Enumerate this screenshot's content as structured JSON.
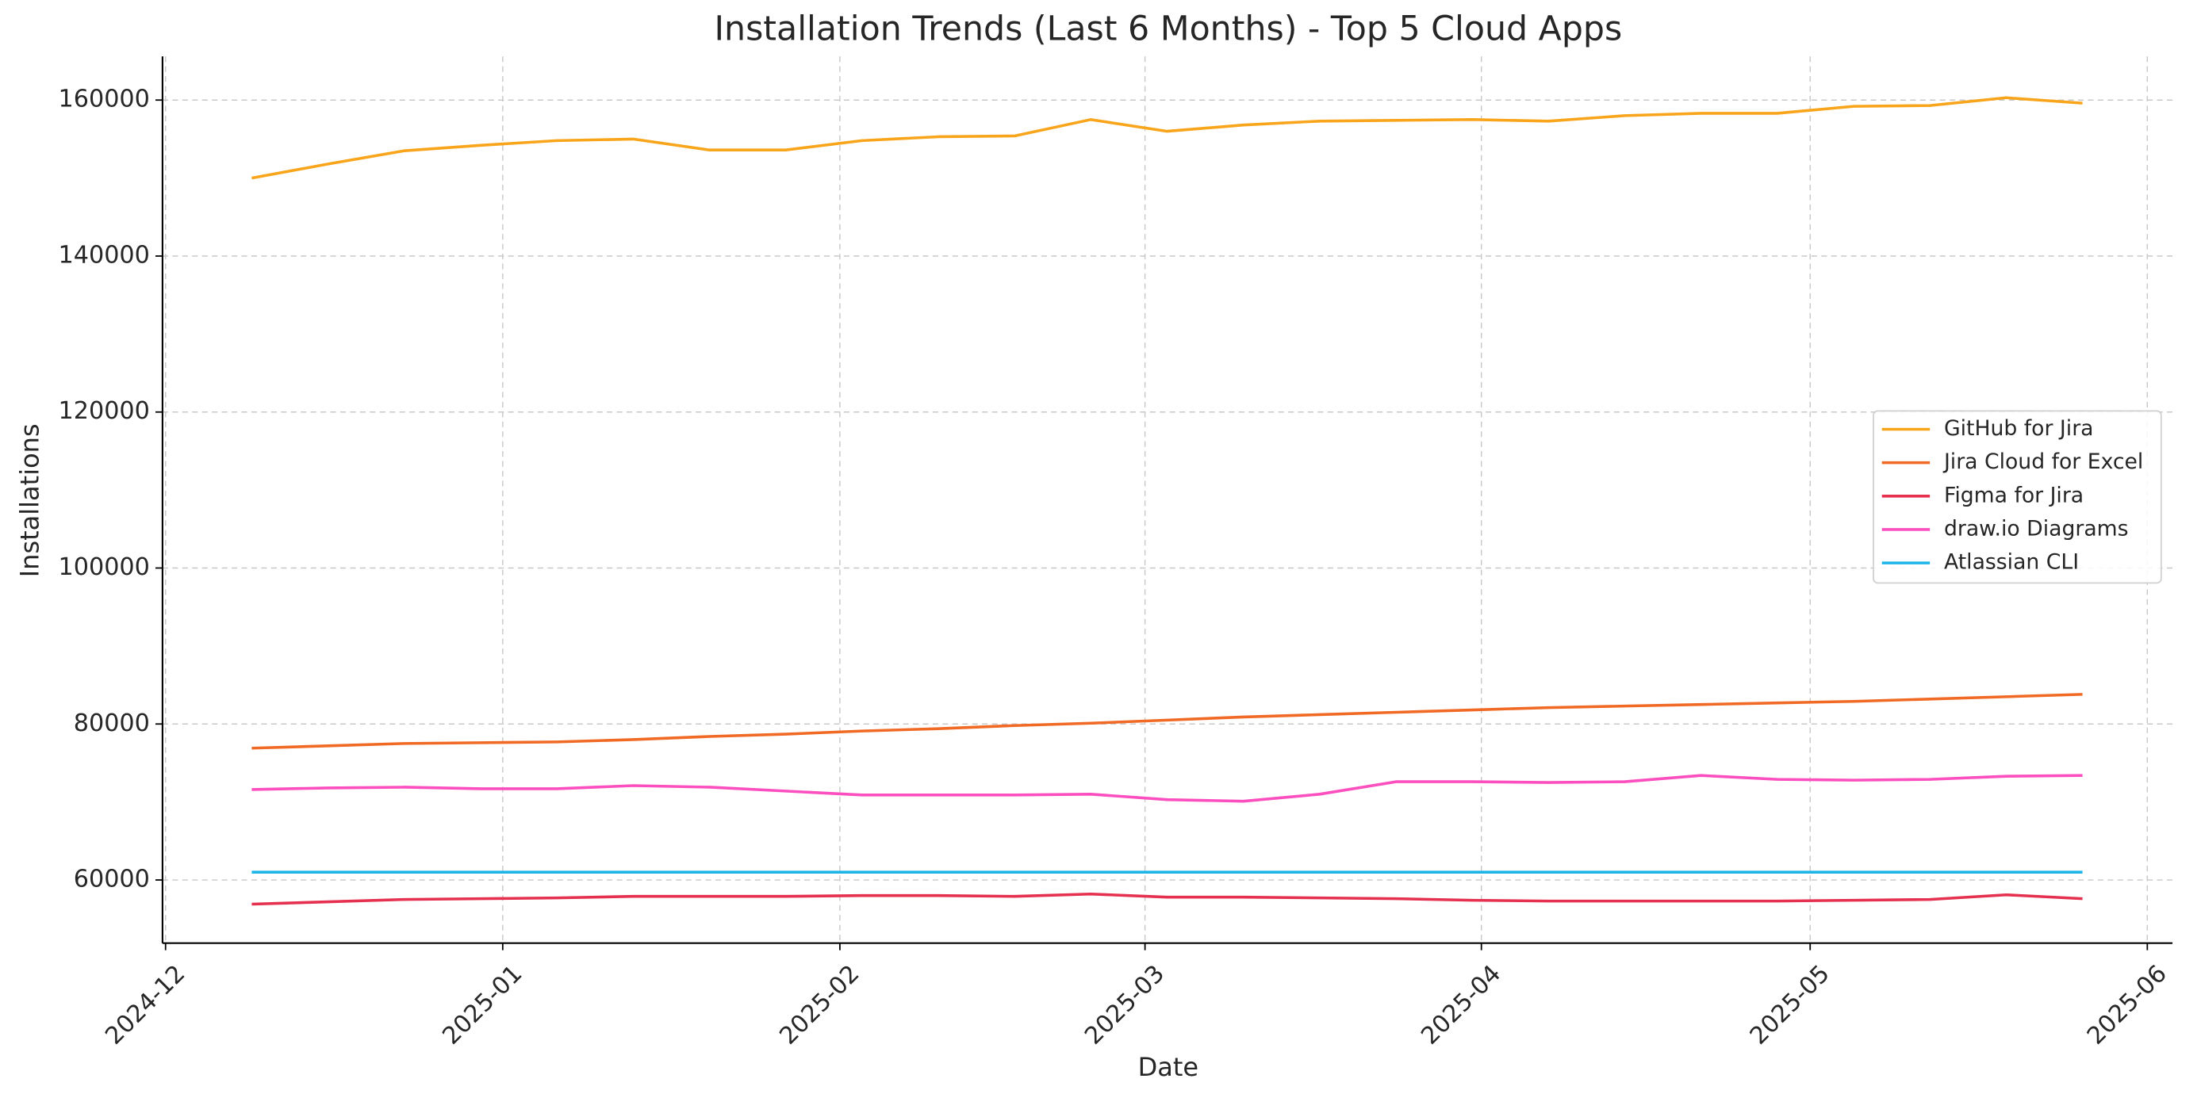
{
  "chart_data": {
    "type": "line",
    "title": "Installation Trends (Last 6 Months) - Top 5 Cloud Apps",
    "xlabel": "Date",
    "ylabel": "Installations",
    "x": [
      "2024-12",
      "2024-12",
      "2024-12",
      "2024-12",
      "2025-01",
      "2025-01",
      "2025-01",
      "2025-01",
      "2025-02",
      "2025-02",
      "2025-02",
      "2025-02",
      "2025-03",
      "2025-03",
      "2025-03",
      "2025-03",
      "2025-03",
      "2025-04",
      "2025-04",
      "2025-04",
      "2025-04",
      "2025-05",
      "2025-05",
      "2025-05",
      "2025-05"
    ],
    "series": [
      {
        "name": "GitHub for Jira",
        "color": "#f8a51c",
        "values": [
          150000,
          151800,
          153500,
          154200,
          154800,
          155000,
          153600,
          153600,
          154800,
          155300,
          155400,
          157500,
          156000,
          156800,
          157300,
          157400,
          157500,
          157300,
          158000,
          158300,
          158300,
          159200,
          159300,
          160300,
          159600
        ]
      },
      {
        "name": "Jira Cloud for Excel",
        "color": "#f06a25",
        "values": [
          76900,
          77200,
          77500,
          77600,
          77700,
          78000,
          78400,
          78700,
          79100,
          79400,
          79800,
          80100,
          80500,
          80900,
          81200,
          81500,
          81800,
          82100,
          82300,
          82500,
          82700,
          82900,
          83200,
          83500,
          83800
        ]
      },
      {
        "name": "Figma for Jira",
        "color": "#e5304f",
        "values": [
          56900,
          57200,
          57500,
          57600,
          57700,
          57900,
          57900,
          57900,
          58000,
          58000,
          57900,
          58200,
          57800,
          57800,
          57700,
          57600,
          57400,
          57300,
          57300,
          57300,
          57300,
          57400,
          57500,
          58100,
          57600
        ]
      },
      {
        "name": "draw.io Diagrams",
        "color": "#fb4fbf",
        "values": [
          71600,
          71800,
          71900,
          71700,
          71700,
          72100,
          71900,
          71400,
          70900,
          70900,
          70900,
          71000,
          70300,
          70100,
          71000,
          72600,
          72600,
          72500,
          72600,
          73400,
          72900,
          72800,
          72900,
          73300,
          73400
        ]
      },
      {
        "name": "Atlassian CLI",
        "color": "#1db4e8",
        "values": [
          61000,
          61000,
          61000,
          61000,
          61000,
          61000,
          61000,
          61000,
          61000,
          61000,
          61000,
          61000,
          61000,
          61000,
          61000,
          61000,
          61000,
          61000,
          61000,
          61000,
          61000,
          61000,
          61000,
          61000,
          61000
        ]
      }
    ],
    "xlim": [
      -1.17,
      25.18
    ],
    "xticks": [
      {
        "value": -1.13,
        "label": "2024-12"
      },
      {
        "value": 3.29,
        "label": "2025-01"
      },
      {
        "value": 7.71,
        "label": "2025-02"
      },
      {
        "value": 11.71,
        "label": "2025-03"
      },
      {
        "value": 16.12,
        "label": "2025-04"
      },
      {
        "value": 20.43,
        "label": "2025-05"
      },
      {
        "value": 24.85,
        "label": "2025-06"
      }
    ],
    "ylim": [
      51900,
      165600
    ],
    "yticks": [
      60000,
      80000,
      100000,
      120000,
      140000,
      160000
    ],
    "grid": true,
    "legend": "right"
  }
}
